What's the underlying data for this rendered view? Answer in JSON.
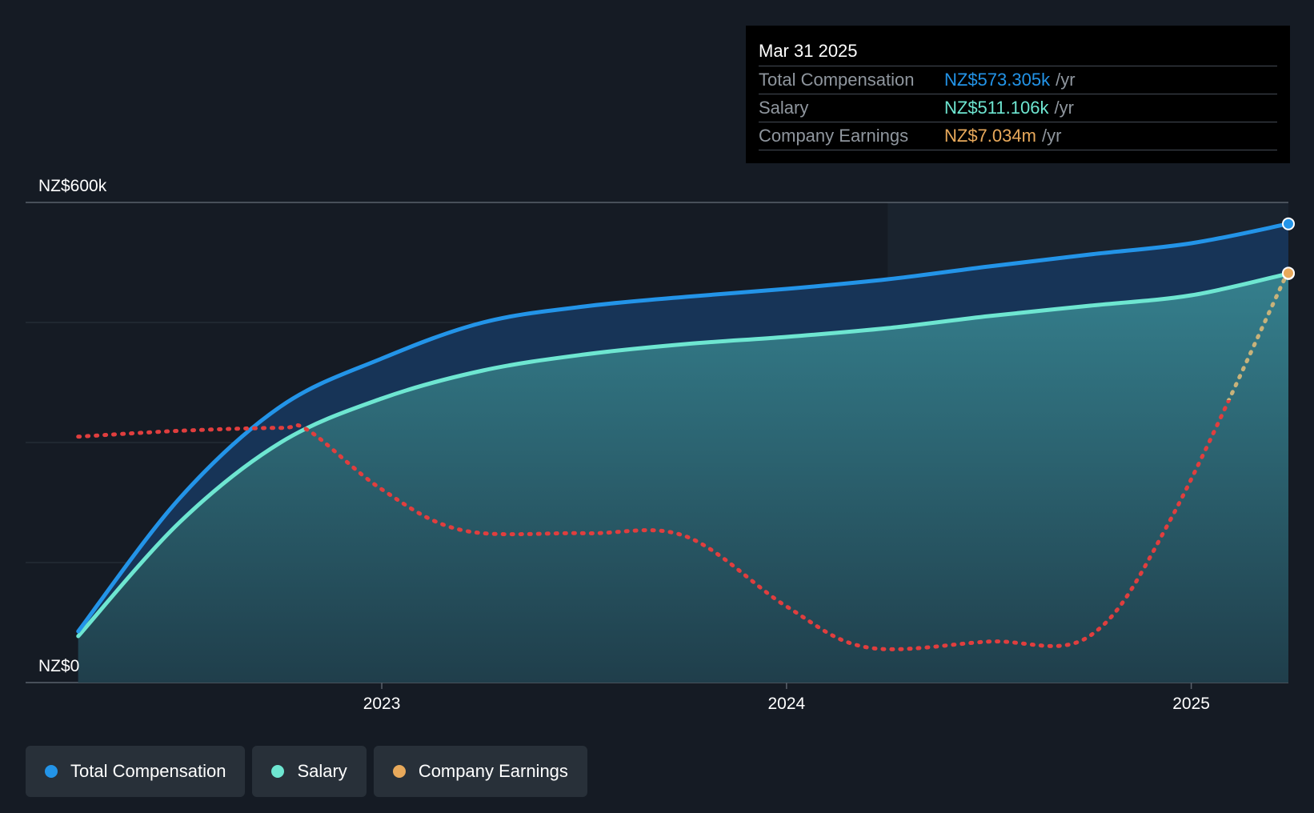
{
  "tooltip": {
    "date": "Mar 31 2025",
    "rows": [
      {
        "label": "Total Compensation",
        "value": "NZ$573.305k",
        "unit": "/yr",
        "color": "#2394e8"
      },
      {
        "label": "Salary",
        "value": "NZ$511.106k",
        "unit": "/yr",
        "color": "#6ee6d1"
      },
      {
        "label": "Company Earnings",
        "value": "NZ$7.034m",
        "unit": "/yr",
        "color": "#e8a95b"
      }
    ]
  },
  "legend": [
    {
      "label": "Total Compensation",
      "color": "#2394e8"
    },
    {
      "label": "Salary",
      "color": "#6ee6d1"
    },
    {
      "label": "Company Earnings",
      "color": "#e8a95b"
    }
  ],
  "chart_data": {
    "type": "area",
    "y_ticks": [
      {
        "value": 600,
        "label": "NZ$600k"
      },
      {
        "value": 0,
        "label": "NZ$0"
      }
    ],
    "ylim": [
      0,
      600
    ],
    "x_ticks": [
      {
        "value": 2023.0,
        "label": "2023"
      },
      {
        "value": 2024.0,
        "label": "2024"
      },
      {
        "value": 2025.0,
        "label": "2025"
      }
    ],
    "xlim": [
      2022.12,
      2025.24
    ],
    "forecast_start": 2024.25,
    "grid": true,
    "legend_position": "bottom-left",
    "series": [
      {
        "name": "Total Compensation",
        "color": "#2394e8",
        "points": [
          [
            2022.25,
            64
          ],
          [
            2022.5,
            230
          ],
          [
            2022.75,
            345
          ],
          [
            2023.0,
            405
          ],
          [
            2023.25,
            450
          ],
          [
            2023.5,
            470
          ],
          [
            2023.75,
            482
          ],
          [
            2024.0,
            492
          ],
          [
            2024.25,
            504
          ],
          [
            2024.5,
            520
          ],
          [
            2024.75,
            535
          ],
          [
            2025.0,
            549
          ],
          [
            2025.24,
            573.305
          ]
        ]
      },
      {
        "name": "Salary",
        "color": "#6ee6d1",
        "points": [
          [
            2022.25,
            58
          ],
          [
            2022.5,
            200
          ],
          [
            2022.75,
            300
          ],
          [
            2023.0,
            355
          ],
          [
            2023.25,
            390
          ],
          [
            2023.5,
            410
          ],
          [
            2023.75,
            423
          ],
          [
            2024.0,
            432
          ],
          [
            2024.25,
            443
          ],
          [
            2024.5,
            458
          ],
          [
            2024.75,
            471
          ],
          [
            2025.0,
            484
          ],
          [
            2025.24,
            511.106
          ]
        ]
      },
      {
        "name": "Company Earnings",
        "color": "#e8a95b",
        "negative_color": "#e03e3e",
        "unit": "NZ$m",
        "points": [
          [
            2022.25,
            4.2
          ],
          [
            2022.5,
            4.3
          ],
          [
            2022.75,
            4.35
          ],
          [
            2022.82,
            4.3
          ],
          [
            2023.0,
            3.3
          ],
          [
            2023.2,
            2.6
          ],
          [
            2023.5,
            2.55
          ],
          [
            2023.75,
            2.5
          ],
          [
            2024.0,
            1.3
          ],
          [
            2024.2,
            0.6
          ],
          [
            2024.5,
            0.7
          ],
          [
            2024.75,
            0.8
          ],
          [
            2024.95,
            2.8
          ],
          [
            2025.24,
            7.034
          ]
        ]
      }
    ]
  }
}
